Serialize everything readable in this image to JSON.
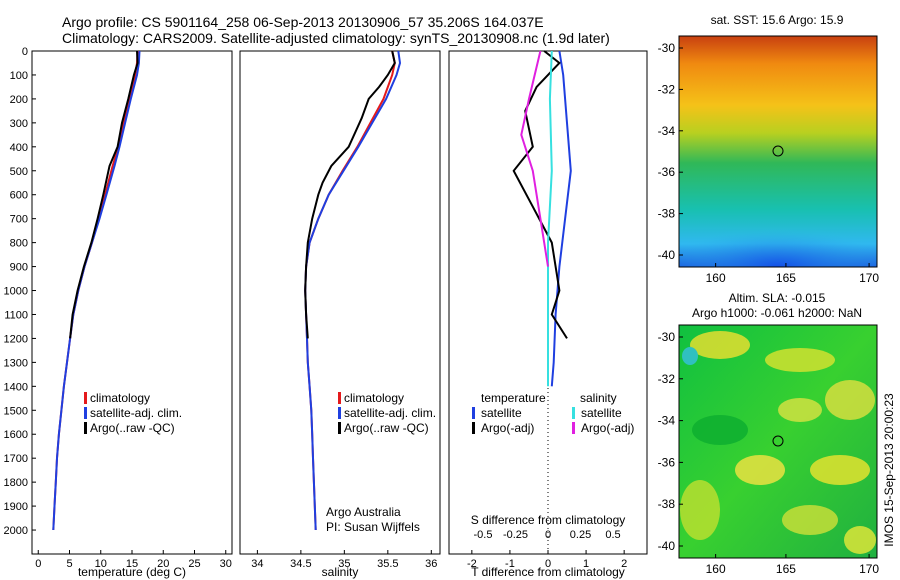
{
  "header": {
    "line1": "Argo profile: CS 5901164_258 06-Sep-2013 20130906_57 35.206S 164.037E",
    "line2": "Climatology: CARS2009. Satellite-adjusted climatology: synTS_20130908.nc (1.9d later)"
  },
  "colors": {
    "climatology": "#e41a1c",
    "satellite": "#1f3fe0",
    "argo": "#000000",
    "sat_salinity": "#36e0e0",
    "argo_salinity": "#e020e0"
  },
  "chart_data": [
    {
      "type": "line",
      "panel": "temperature",
      "xlabel": "temperature (deg C)",
      "ylabel": "",
      "xlim": [
        -1,
        31
      ],
      "ylim": [
        2100,
        0
      ],
      "xticks": [
        0,
        5,
        10,
        15,
        20,
        25,
        30
      ],
      "yticks": [
        0,
        100,
        200,
        300,
        400,
        500,
        600,
        700,
        800,
        900,
        1000,
        1100,
        1200,
        1300,
        1400,
        1500,
        1600,
        1700,
        1800,
        1900,
        2000
      ],
      "legend": [
        "climatology",
        "satellite-adj. clim.",
        "Argo(..raw -QC)"
      ],
      "series": [
        {
          "name": "climatology",
          "color": "#e41a1c",
          "points": [
            [
              15.9,
              0
            ],
            [
              15.8,
              50
            ],
            [
              15.5,
              100
            ],
            [
              14.6,
              200
            ],
            [
              13.6,
              300
            ],
            [
              12.8,
              400
            ],
            [
              11.9,
              480
            ],
            [
              10.7,
              600
            ],
            [
              9.7,
              700
            ],
            [
              8.6,
              800
            ],
            [
              7.4,
              900
            ],
            [
              6.4,
              1000
            ],
            [
              5.6,
              1100
            ],
            [
              5.1,
              1200
            ],
            [
              4.6,
              1300
            ],
            [
              4.1,
              1400
            ],
            [
              3.7,
              1500
            ],
            [
              3.3,
              1600
            ],
            [
              3.0,
              1700
            ],
            [
              2.8,
              1800
            ],
            [
              2.6,
              1900
            ],
            [
              2.4,
              2000
            ]
          ]
        },
        {
          "name": "satellite-adj. clim.",
          "color": "#1f3fe0",
          "points": [
            [
              16.2,
              0
            ],
            [
              16.1,
              50
            ],
            [
              15.8,
              100
            ],
            [
              14.8,
              200
            ],
            [
              13.9,
              300
            ],
            [
              13.0,
              400
            ],
            [
              12.2,
              480
            ],
            [
              10.9,
              600
            ],
            [
              9.8,
              700
            ],
            [
              8.6,
              800
            ],
            [
              7.4,
              900
            ],
            [
              6.4,
              1000
            ],
            [
              5.6,
              1100
            ],
            [
              5.1,
              1200
            ],
            [
              4.6,
              1300
            ],
            [
              4.1,
              1400
            ],
            [
              3.7,
              1500
            ],
            [
              3.3,
              1600
            ],
            [
              3.0,
              1700
            ],
            [
              2.8,
              1800
            ],
            [
              2.6,
              1900
            ],
            [
              2.4,
              2000
            ]
          ]
        },
        {
          "name": "Argo(..raw -QC)",
          "color": "#000000",
          "points": [
            [
              15.8,
              0
            ],
            [
              15.9,
              50
            ],
            [
              15.3,
              100
            ],
            [
              14.4,
              200
            ],
            [
              13.4,
              300
            ],
            [
              12.7,
              400
            ],
            [
              11.4,
              480
            ],
            [
              10.4,
              600
            ],
            [
              9.5,
              700
            ],
            [
              8.5,
              800
            ],
            [
              7.3,
              900
            ],
            [
              6.3,
              1000
            ],
            [
              5.5,
              1100
            ],
            [
              5.1,
              1200
            ]
          ]
        }
      ]
    },
    {
      "type": "line",
      "panel": "salinity",
      "xlabel": "salinity",
      "xlim": [
        33.8,
        36.1
      ],
      "ylim": [
        2100,
        0
      ],
      "xticks": [
        34,
        34.5,
        35,
        35.5,
        36
      ],
      "legend": [
        "climatology",
        "satellite-adj. clim.",
        "Argo(..raw -QC)"
      ],
      "annotation": [
        "Argo Australia",
        "PI: Susan Wijffels"
      ],
      "series": [
        {
          "name": "climatology",
          "color": "#e41a1c",
          "points": [
            [
              35.55,
              0
            ],
            [
              35.58,
              50
            ],
            [
              35.55,
              100
            ],
            [
              35.45,
              200
            ],
            [
              35.3,
              300
            ],
            [
              35.15,
              400
            ],
            [
              34.98,
              500
            ],
            [
              34.82,
              600
            ],
            [
              34.7,
              700
            ],
            [
              34.6,
              800
            ],
            [
              34.56,
              900
            ],
            [
              34.55,
              1000
            ],
            [
              34.56,
              1100
            ],
            [
              34.57,
              1200
            ],
            [
              34.58,
              1300
            ],
            [
              34.6,
              1400
            ],
            [
              34.62,
              1500
            ],
            [
              34.63,
              1600
            ],
            [
              34.64,
              1700
            ],
            [
              34.65,
              1800
            ],
            [
              34.66,
              1900
            ],
            [
              34.67,
              2000
            ]
          ]
        },
        {
          "name": "satellite-adj. clim.",
          "color": "#1f3fe0",
          "points": [
            [
              35.62,
              0
            ],
            [
              35.64,
              50
            ],
            [
              35.6,
              100
            ],
            [
              35.48,
              200
            ],
            [
              35.32,
              300
            ],
            [
              35.16,
              400
            ],
            [
              34.99,
              500
            ],
            [
              34.82,
              600
            ],
            [
              34.7,
              700
            ],
            [
              34.6,
              800
            ],
            [
              34.56,
              900
            ],
            [
              34.55,
              1000
            ],
            [
              34.56,
              1100
            ],
            [
              34.57,
              1200
            ],
            [
              34.58,
              1300
            ],
            [
              34.6,
              1400
            ],
            [
              34.62,
              1500
            ],
            [
              34.63,
              1600
            ],
            [
              34.64,
              1700
            ],
            [
              34.65,
              1800
            ],
            [
              34.66,
              1900
            ],
            [
              34.67,
              2000
            ]
          ]
        },
        {
          "name": "Argo(..raw -QC)",
          "color": "#000000",
          "points": [
            [
              35.55,
              0
            ],
            [
              35.58,
              50
            ],
            [
              35.5,
              100
            ],
            [
              35.4,
              150
            ],
            [
              35.28,
              200
            ],
            [
              35.2,
              280
            ],
            [
              35.05,
              400
            ],
            [
              34.85,
              480
            ],
            [
              34.75,
              550
            ],
            [
              34.7,
              600
            ],
            [
              34.63,
              700
            ],
            [
              34.58,
              800
            ],
            [
              34.56,
              900
            ],
            [
              34.55,
              1000
            ],
            [
              34.56,
              1100
            ],
            [
              34.58,
              1200
            ]
          ]
        }
      ]
    },
    {
      "type": "line",
      "panel": "difference",
      "xlabel": "T difference from climatology",
      "xlabel_top": "S difference from climatology",
      "xlim": [
        -2.6,
        2.6
      ],
      "ylim": [
        2100,
        0
      ],
      "xticks": [
        -2,
        -1,
        0,
        1,
        2
      ],
      "xticks_top": [
        -0.5,
        -0.25,
        0,
        0.25,
        0.5
      ],
      "legend_temperature": [
        "temperature",
        "satellite",
        "Argo(-adj)"
      ],
      "legend_salinity": [
        "salinity",
        "satellite",
        "Argo(-adj)"
      ],
      "series": [
        {
          "name": "satellite",
          "color": "#1f3fe0",
          "points": [
            [
              0.3,
              0
            ],
            [
              0.4,
              100
            ],
            [
              0.5,
              300
            ],
            [
              0.6,
              500
            ],
            [
              0.45,
              700
            ],
            [
              0.3,
              900
            ],
            [
              0.2,
              1100
            ],
            [
              0.15,
              1300
            ],
            [
              0.1,
              1400
            ]
          ]
        },
        {
          "name": "Argo(-adj)",
          "color": "#000000",
          "points": [
            [
              -0.1,
              0
            ],
            [
              0.3,
              50
            ],
            [
              -0.3,
              150
            ],
            [
              -0.6,
              250
            ],
            [
              -0.4,
              400
            ],
            [
              -0.9,
              500
            ],
            [
              -0.4,
              650
            ],
            [
              0.1,
              800
            ],
            [
              0.3,
              1000
            ],
            [
              0.1,
              1100
            ],
            [
              0.5,
              1200
            ]
          ]
        },
        {
          "name": "satellite",
          "color": "#36e0e0",
          "points": [
            [
              0.1,
              0
            ],
            [
              0.05,
              200
            ],
            [
              0.1,
              500
            ],
            [
              0.0,
              800
            ],
            [
              0.0,
              1400
            ]
          ]
        },
        {
          "name": "Argo(-adj)",
          "color": "#e020e0",
          "points": [
            [
              -0.2,
              0
            ],
            [
              -0.5,
              200
            ],
            [
              -0.7,
              350
            ],
            [
              -0.4,
              500
            ],
            [
              -0.2,
              700
            ],
            [
              0.0,
              900
            ]
          ]
        }
      ]
    }
  ],
  "maps": {
    "sst": {
      "title": "sat. SST: 15.6 Argo: 15.9",
      "xticks": [
        "160",
        "165",
        "170"
      ],
      "yticks": [
        "-30",
        "-32",
        "-34",
        "-36",
        "-38",
        "-40"
      ]
    },
    "sla": {
      "title1": "Altim. SLA: -0.015",
      "title2": "Argo h1000: -0.061 h2000: NaN",
      "xticks": [
        "160",
        "165",
        "170"
      ],
      "yticks": [
        "-30",
        "-32",
        "-34",
        "-36",
        "-38",
        "-40"
      ]
    }
  },
  "side_label": "IMOS 15-Sep-2013 20:00:23"
}
